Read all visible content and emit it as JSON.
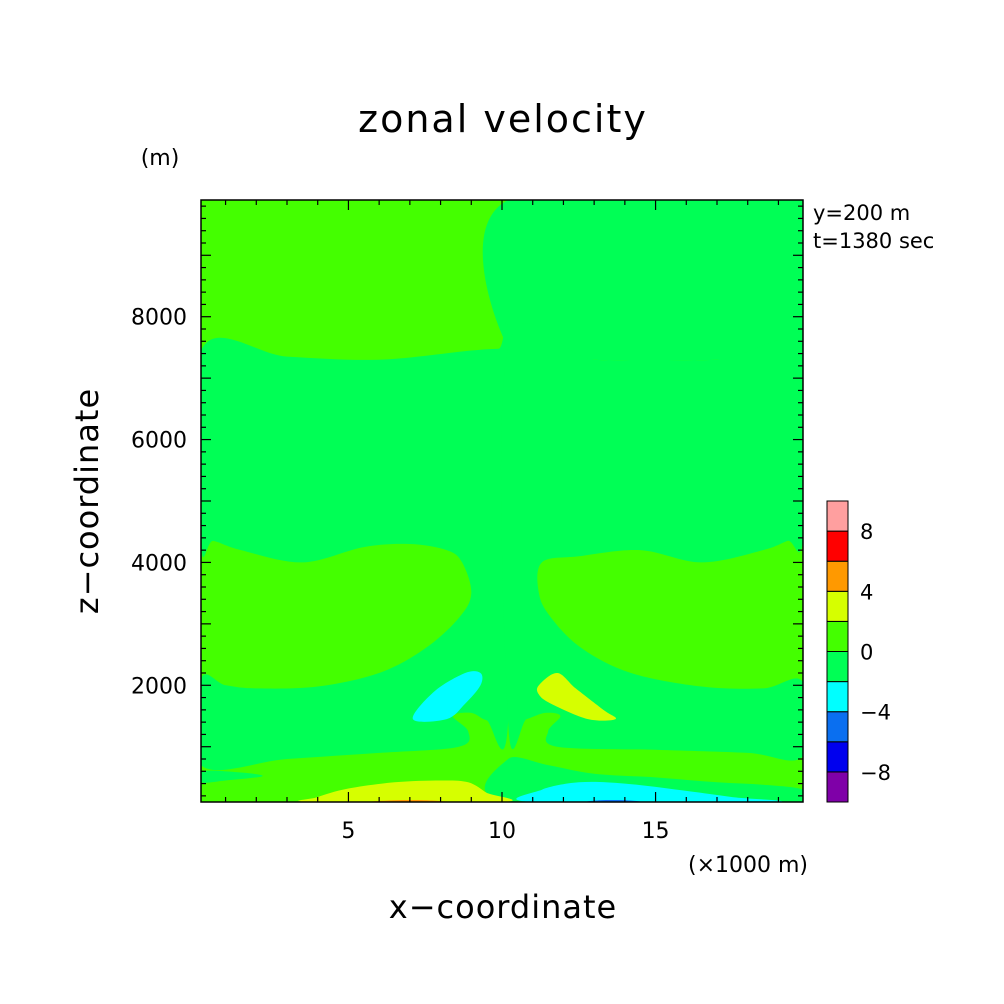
{
  "chart_data": {
    "type": "heatmap",
    "title": "zonal velocity",
    "xlabel": "x−coordinate",
    "ylabel": "z−coordinate",
    "x_unit": "(×1000 m)",
    "y_unit": "(m)",
    "annotations": [
      "y=200 m",
      "t=1380 sec"
    ],
    "xlim": [
      0.2,
      19.8
    ],
    "ylim": [
      100,
      9900
    ],
    "x_ticks": [
      5,
      10,
      15
    ],
    "y_ticks": [
      2000,
      4000,
      6000,
      8000
    ],
    "x_tick_labels": [
      "5",
      "10",
      "15"
    ],
    "y_tick_labels": [
      "2000",
      "4000",
      "6000",
      "8000"
    ],
    "colorbar": {
      "levels": [
        -10,
        -8,
        -6,
        -4,
        -2,
        0,
        2,
        4,
        6,
        8,
        10
      ],
      "colors": [
        "#7f00a8",
        "#0000ee",
        "#0a6ff0",
        "#00ffff",
        "#00ff55",
        "#44ff00",
        "#d6ff00",
        "#ff9900",
        "#ff0000",
        "#ff9f9f"
      ],
      "tick_labels": [
        "8",
        "4",
        "0",
        "−4",
        "−8"
      ],
      "tick_values": [
        8,
        4,
        0,
        -4,
        -8
      ]
    },
    "background_level": "0 to 2",
    "regions": [
      {
        "name": "upper-layer-east",
        "range": "-2 to 0",
        "color": "#00ff55",
        "points": [
          [
            10.2,
            9900
          ],
          [
            19.8,
            9900
          ],
          [
            19.8,
            7450
          ],
          [
            17,
            7300
          ],
          [
            13,
            7300
          ],
          [
            10.2,
            7500
          ]
        ]
      },
      {
        "name": "middle-band-west",
        "range": "-2 to 0",
        "color": "#00ff55",
        "points": [
          [
            0.2,
            7450
          ],
          [
            3,
            7350
          ],
          [
            6,
            7300
          ],
          [
            9,
            7450
          ],
          [
            9.9,
            7480
          ],
          [
            10.2,
            7480
          ],
          [
            10.2,
            1400
          ],
          [
            9.5,
            1430
          ],
          [
            9,
            1550
          ],
          [
            8.4,
            1500
          ],
          [
            8.9,
            1250
          ],
          [
            8.6,
            1000
          ],
          [
            6,
            900
          ],
          [
            3,
            800
          ],
          [
            0.2,
            700
          ],
          [
            0.2,
            2100
          ],
          [
            1,
            2000
          ],
          [
            2,
            1950
          ],
          [
            4,
            1980
          ],
          [
            6,
            2200
          ],
          [
            7.5,
            2600
          ],
          [
            8.6,
            3100
          ],
          [
            9,
            3500
          ],
          [
            8.7,
            4000
          ],
          [
            8.2,
            4200
          ],
          [
            7,
            4300
          ],
          [
            5.5,
            4250
          ],
          [
            3.5,
            4000
          ],
          [
            1.5,
            4200
          ],
          [
            0.6,
            4350
          ],
          [
            0.2,
            4300
          ]
        ]
      },
      {
        "name": "middle-band-east",
        "range": "-2 to 0",
        "color": "#00ff55",
        "points": [
          [
            10.2,
            7500
          ],
          [
            13,
            7300
          ],
          [
            17,
            7300
          ],
          [
            19.8,
            7450
          ],
          [
            19.8,
            4400
          ],
          [
            19.3,
            4350
          ],
          [
            18.5,
            4200
          ],
          [
            16.5,
            4000
          ],
          [
            14.5,
            4200
          ],
          [
            12.5,
            4100
          ],
          [
            11.3,
            4000
          ],
          [
            11.2,
            3500
          ],
          [
            11.6,
            3100
          ],
          [
            12.6,
            2600
          ],
          [
            14.2,
            2200
          ],
          [
            16.5,
            1980
          ],
          [
            18.5,
            1950
          ],
          [
            19.8,
            2050
          ],
          [
            19.8,
            850
          ],
          [
            18,
            900
          ],
          [
            15,
            950
          ],
          [
            11.8,
            1000
          ],
          [
            11.5,
            1250
          ],
          [
            11.9,
            1500
          ],
          [
            11.4,
            1550
          ],
          [
            10.8,
            1450
          ],
          [
            10.2,
            1400
          ]
        ]
      },
      {
        "name": "lower-layer-west",
        "range": "-2 to 0",
        "color": "#00ff55",
        "points": [
          [
            0.2,
            600
          ],
          [
            1.5,
            580
          ],
          [
            2.2,
            520
          ],
          [
            1,
            450
          ],
          [
            0.2,
            420
          ]
        ]
      },
      {
        "name": "lower-layer-east",
        "range": "-2 to 0",
        "color": "#00ff55",
        "points": [
          [
            10.2,
            100
          ],
          [
            19.8,
            100
          ],
          [
            19.8,
            300
          ],
          [
            18.5,
            380
          ],
          [
            17,
            420
          ],
          [
            15,
            500
          ],
          [
            13,
            560
          ],
          [
            11.5,
            700
          ],
          [
            10.2,
            800
          ]
        ]
      },
      {
        "name": "negative-cell-west",
        "range": "-4 to -2",
        "color": "#00ffff",
        "points": [
          [
            7.1,
            1450
          ],
          [
            7.8,
            1900
          ],
          [
            8.8,
            2200
          ],
          [
            9.3,
            2200
          ],
          [
            9.3,
            2000
          ],
          [
            8.8,
            1700
          ],
          [
            8.2,
            1450
          ]
        ]
      },
      {
        "name": "positive-cell-east",
        "range": "2 to 4",
        "color": "#d6ff00",
        "points": [
          [
            11.2,
            2000
          ],
          [
            11.8,
            2200
          ],
          [
            12.4,
            1950
          ],
          [
            13.3,
            1600
          ],
          [
            13.7,
            1450
          ],
          [
            12.8,
            1450
          ],
          [
            11.6,
            1700
          ],
          [
            11.2,
            1850
          ]
        ]
      },
      {
        "name": "surface-positive-west",
        "range": "2 to 4",
        "color": "#d6ff00",
        "points": [
          [
            3.8,
            100
          ],
          [
            10,
            100
          ],
          [
            9.5,
            250
          ],
          [
            8.9,
            420
          ],
          [
            8,
            450
          ],
          [
            6.5,
            420
          ],
          [
            5,
            320
          ],
          [
            4,
            180
          ]
        ]
      },
      {
        "name": "surface-negative-east",
        "range": "-4 to -2",
        "color": "#00ffff",
        "points": [
          [
            11,
            100
          ],
          [
            18.8,
            100
          ],
          [
            17.5,
            180
          ],
          [
            16,
            280
          ],
          [
            14,
            400
          ],
          [
            12.5,
            420
          ],
          [
            11.3,
            300
          ]
        ]
      },
      {
        "name": "surface-strong-positive",
        "range": "4 to 6",
        "color": "#ff9900",
        "points": [
          [
            5.8,
            100
          ],
          [
            8.2,
            100
          ],
          [
            7.5,
            130
          ],
          [
            6.5,
            130
          ]
        ]
      },
      {
        "name": "surface-strong-negative",
        "range": "-6 to -4",
        "color": "#0a6ff0",
        "points": [
          [
            12.8,
            100
          ],
          [
            14.5,
            100
          ],
          [
            14,
            130
          ],
          [
            13.2,
            130
          ]
        ]
      }
    ]
  }
}
